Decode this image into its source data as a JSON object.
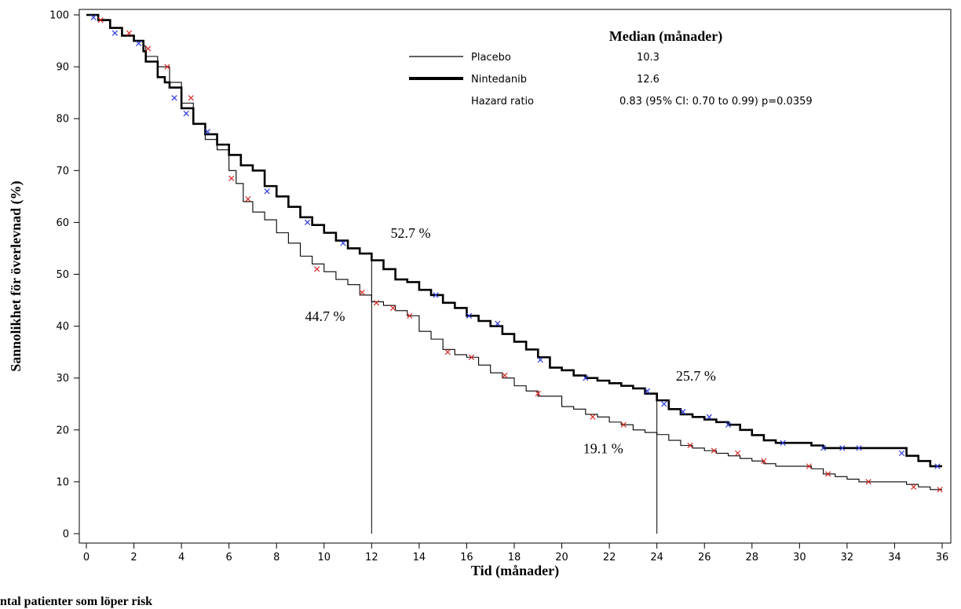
{
  "chart_data": {
    "type": "line",
    "title": "",
    "xlabel": "Tid (månader)",
    "ylabel": "Sannolikhet för överlevnad (%)",
    "xlim": [
      0,
      36
    ],
    "ylim": [
      0,
      100
    ],
    "x_ticks": [
      0,
      2,
      4,
      6,
      8,
      10,
      12,
      14,
      16,
      18,
      20,
      22,
      24,
      26,
      28,
      30,
      32,
      34,
      36
    ],
    "y_ticks": [
      0,
      10,
      20,
      30,
      40,
      50,
      60,
      70,
      80,
      90,
      100
    ],
    "legend": {
      "title": "Median (månader)",
      "entries": [
        {
          "name": "Placebo",
          "value": "10.3"
        },
        {
          "name": "Nintedanib",
          "value": "12.6"
        },
        {
          "name": "Hazard ratio",
          "value": "0.83 (95% CI: 0.70 to 0.99) p=0.0359"
        }
      ]
    },
    "series": [
      {
        "name": "Nintedanib",
        "color": "#000000",
        "censor_color": "#2f3bd6",
        "x": [
          0,
          0.5,
          1,
          1.5,
          2,
          2.4,
          2.5,
          3,
          3.3,
          3.5,
          4,
          4.5,
          5,
          5.5,
          6,
          6.5,
          7,
          7.5,
          8,
          8.5,
          9,
          9.5,
          10,
          10.5,
          11,
          11.5,
          12,
          12.5,
          13,
          13.5,
          14,
          14.5,
          15,
          15.5,
          16,
          16.5,
          17,
          17.5,
          18,
          18.5,
          19,
          19.5,
          20,
          20.5,
          21,
          21.5,
          22,
          22.5,
          23,
          23.5,
          24,
          24.5,
          25,
          25.5,
          26,
          26.5,
          27,
          27.5,
          28,
          28.5,
          29,
          29.5,
          30,
          30.5,
          31,
          31.5,
          32,
          32.5,
          33,
          33.5,
          34,
          34.5,
          35,
          35.5,
          36
        ],
        "y": [
          100,
          99,
          97.5,
          96,
          95,
          93,
          91,
          88,
          87,
          86,
          82,
          79,
          77,
          75,
          73,
          71,
          70,
          67,
          65,
          63,
          61,
          59.5,
          58,
          56.5,
          55,
          54,
          52.7,
          51,
          49,
          48.5,
          47,
          46,
          44.5,
          43.5,
          42,
          41,
          40,
          38.5,
          37,
          35.5,
          34,
          32,
          31.5,
          30.5,
          30,
          29.5,
          29,
          28.5,
          28,
          27,
          25.7,
          24,
          23,
          22.5,
          22,
          21.5,
          21,
          20,
          19,
          18,
          17.5,
          17.5,
          17.5,
          17,
          16.5,
          16.5,
          16.5,
          16.5,
          16.5,
          16.5,
          16.5,
          15,
          14,
          13,
          13
        ],
        "censored_x": [
          0.3,
          1.2,
          2.2,
          3.7,
          4.2,
          5.1,
          7.6,
          9.3,
          10.8,
          14.7,
          16.1,
          17.3,
          19.1,
          21.0,
          23.6,
          24.3,
          25.1,
          26.2,
          27.0,
          29.3,
          31.0,
          31.8,
          32.5,
          34.3,
          35.8
        ],
        "censored_y": [
          99.5,
          96.5,
          94.5,
          84,
          81,
          77.5,
          66,
          60,
          56,
          46,
          42,
          40.5,
          33.5,
          30,
          27.5,
          25,
          23.5,
          22.5,
          21,
          17.5,
          16.5,
          16.5,
          16.5,
          15.5,
          13
        ]
      },
      {
        "name": "Placebo",
        "color": "#000000",
        "censor_color": "#d42a2a",
        "x": [
          0,
          0.5,
          1,
          1.5,
          2,
          2.4,
          2.5,
          3,
          3.5,
          4,
          4.5,
          5,
          5.5,
          6,
          6.3,
          6.6,
          7,
          7.5,
          8,
          8.5,
          9,
          9.5,
          10,
          10.5,
          11,
          11.5,
          12,
          12.5,
          13,
          13.5,
          14,
          14.5,
          15,
          15.5,
          16,
          16.5,
          17,
          17.5,
          18,
          18.5,
          19,
          19.5,
          20,
          20.5,
          21,
          21.5,
          22,
          22.5,
          23,
          23.5,
          24,
          24.5,
          25,
          25.5,
          26,
          26.5,
          27,
          27.5,
          28,
          28.5,
          29,
          29.5,
          30,
          30.5,
          31,
          31.5,
          32,
          32.5,
          33,
          33.5,
          34,
          34.5,
          35,
          35.5,
          36
        ],
        "y": [
          100,
          99,
          97.5,
          96,
          95,
          94,
          92,
          90,
          87,
          83,
          79,
          76,
          74,
          70,
          67.5,
          64,
          62,
          60.5,
          58,
          56,
          53.5,
          52,
          50.5,
          49,
          48,
          46,
          44.7,
          44,
          43,
          42,
          39,
          37.5,
          35.5,
          34.5,
          34,
          32.5,
          31,
          30,
          28.5,
          27.5,
          26.5,
          26.5,
          24.5,
          24,
          23,
          22.5,
          21.5,
          21,
          20,
          19.5,
          19.1,
          18,
          17,
          16.5,
          16,
          15.5,
          15,
          14.5,
          14,
          13.5,
          13,
          13,
          13,
          12.5,
          11.5,
          11,
          10.5,
          10,
          10,
          10,
          10,
          9.5,
          9,
          8.5,
          8.5
        ],
        "censored_x": [
          0.6,
          1.8,
          2.6,
          3.4,
          4.4,
          6.1,
          6.8,
          9.7,
          11.6,
          12.2,
          12.9,
          13.6,
          15.2,
          16.2,
          17.6,
          19.0,
          21.3,
          22.6,
          25.4,
          26.4,
          27.4,
          28.5,
          30.4,
          31.2,
          32.9,
          34.8,
          35.9
        ],
        "censored_y": [
          99,
          96.5,
          93.5,
          90,
          84,
          68.5,
          64.5,
          51,
          46.5,
          44.5,
          43.5,
          42,
          35,
          34,
          30.5,
          27,
          22.5,
          21,
          17,
          16,
          15.5,
          14,
          13,
          11.5,
          10,
          9,
          8.5
        ]
      }
    ],
    "reference_lines": [
      {
        "x": 12,
        "from": 0,
        "to": 52.7
      },
      {
        "x": 24,
        "from": 0,
        "to": 25.7
      }
    ],
    "annotations": [
      {
        "text": "52.7 %",
        "x": 12.8,
        "y": 57
      },
      {
        "text": "44.7 %",
        "x": 9.2,
        "y": 41
      },
      {
        "text": "25.7 %",
        "x": 24.8,
        "y": 29.5
      },
      {
        "text": "19.1 %",
        "x": 20.9,
        "y": 15.5
      }
    ],
    "footer_text": "ntal patienter som löper risk"
  }
}
